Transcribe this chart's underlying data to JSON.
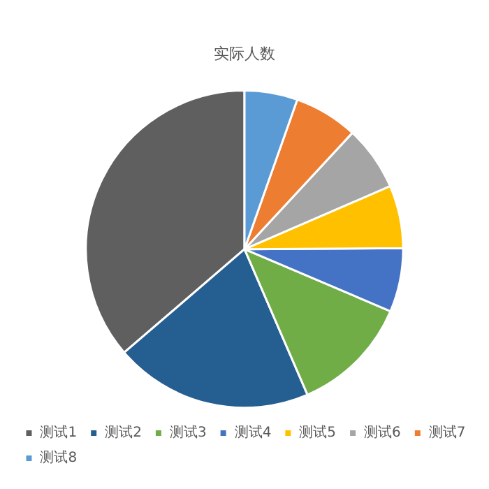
{
  "chart_data": {
    "type": "pie",
    "title": "实际人数",
    "categories": [
      "测试1",
      "测试2",
      "测试3",
      "测试4",
      "测试5",
      "测试6",
      "测试7",
      "测试8"
    ],
    "values": [
      36.3,
      20.2,
      12.1,
      6.5,
      6.4,
      6.6,
      6.5,
      5.4
    ],
    "colors": [
      "#5f5f5f",
      "#255e91",
      "#70ad47",
      "#4472c4",
      "#ffc000",
      "#a5a5a5",
      "#ed7d31",
      "#5b9bd5"
    ],
    "legend": "bottom"
  }
}
